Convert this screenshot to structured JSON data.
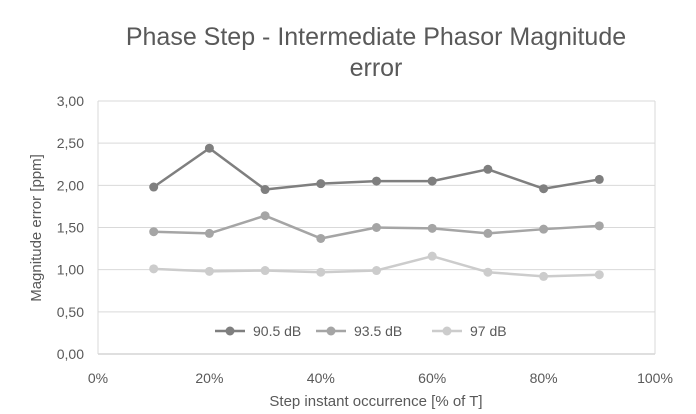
{
  "chart_data": {
    "type": "line",
    "title_lines": [
      "Phase Step - Intermediate Phasor Magnitude",
      "error"
    ],
    "xlabel": "Step instant occurrence [% of T]",
    "ylabel": "Magnitude error [ppm]",
    "xlim": [
      0,
      100
    ],
    "ylim": [
      0,
      3
    ],
    "x_ticks": [
      0,
      20,
      40,
      60,
      80,
      100
    ],
    "x_tick_labels": [
      "0%",
      "20%",
      "40%",
      "60%",
      "80%",
      "100%"
    ],
    "y_ticks": [
      0,
      0.5,
      1.0,
      1.5,
      2.0,
      2.5,
      3.0
    ],
    "y_tick_labels": [
      "0,00",
      "0,50",
      "1,00",
      "1,50",
      "2,00",
      "2,50",
      "3,00"
    ],
    "grid": true,
    "legend_position": "bottom-inside",
    "x": [
      10,
      20,
      30,
      40,
      50,
      60,
      70,
      80,
      90
    ],
    "series": [
      {
        "name": "90.5 dB",
        "color": "#7f7f7f",
        "values": [
          1.98,
          2.44,
          1.95,
          2.02,
          2.05,
          2.05,
          2.19,
          1.96,
          2.07
        ]
      },
      {
        "name": "93.5 dB",
        "color": "#a5a5a5",
        "values": [
          1.45,
          1.43,
          1.64,
          1.37,
          1.5,
          1.49,
          1.43,
          1.48,
          1.52
        ]
      },
      {
        "name": "97 dB",
        "color": "#cccccc",
        "values": [
          1.01,
          0.98,
          0.99,
          0.97,
          0.99,
          1.16,
          0.97,
          0.92,
          0.94
        ]
      }
    ]
  }
}
